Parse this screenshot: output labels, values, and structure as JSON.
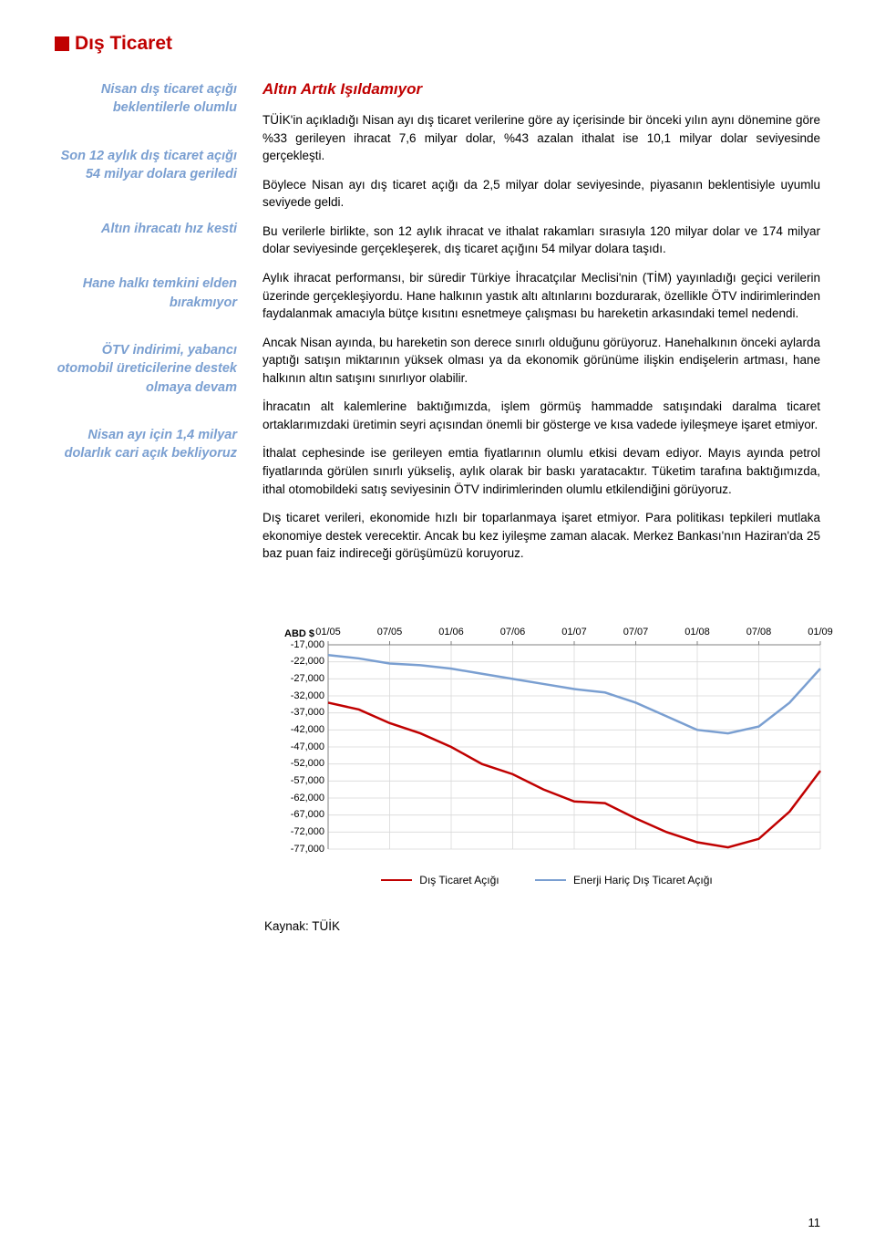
{
  "section": {
    "title": "Dış Ticaret"
  },
  "sidebar": {
    "blocks": [
      "Nisan dış ticaret açığı beklentilerle olumlu",
      "Son 12 aylık dış ticaret açığı 54 milyar dolara geriledi",
      "Altın ihracatı hız kesti",
      "Hane halkı temkini elden bırakmıyor",
      "ÖTV indirimi, yabancı otomobil üreticilerine destek olmaya devam",
      "Nisan ayı için 1,4 milyar dolarlık cari açık bekliyoruz"
    ]
  },
  "main": {
    "subtitle": "Altın Artık Işıldamıyor",
    "paragraphs": [
      "TÜİK'in açıkladığı Nisan ayı dış ticaret verilerine göre ay içerisinde bir önceki yılın aynı dönemine göre %33 gerileyen ihracat 7,6 milyar dolar, %43 azalan ithalat ise 10,1 milyar dolar seviyesinde gerçekleşti.",
      "Böylece Nisan ayı dış ticaret açığı da 2,5 milyar dolar seviyesinde, piyasanın beklentisiyle uyumlu seviyede geldi.",
      "Bu verilerle birlikte, son 12 aylık ihracat ve ithalat rakamları sırasıyla 120 milyar dolar ve 174 milyar dolar seviyesinde gerçekleşerek, dış ticaret açığını 54 milyar dolara taşıdı.",
      "Aylık ihracat performansı, bir süredir Türkiye İhracatçılar Meclisi'nin (TİM) yayınladığı geçici verilerin üzerinde gerçekleşiyordu. Hane halkının yastık altı altınlarını bozdurarak, özellikle ÖTV indirimlerinden faydalanmak amacıyla bütçe kısıtını esnetmeye çalışması bu hareketin arkasındaki temel nedendi.",
      "Ancak Nisan ayında, bu hareketin son derece sınırlı olduğunu görüyoruz. Hanehalkının önceki aylarda yaptığı satışın miktarının yüksek olması ya da ekonomik görünüme ilişkin endişelerin artması, hane halkının altın satışını sınırlıyor olabilir.",
      "İhracatın alt kalemlerine baktığımızda, işlem görmüş hammadde satışındaki daralma ticaret ortaklarımızdaki üretimin seyri açısından önemli bir gösterge ve kısa vadede iyileşmeye işaret etmiyor.",
      "İthalat cephesinde ise gerileyen emtia fiyatlarının olumlu etkisi devam ediyor. Mayıs ayında petrol fiyatlarında görülen sınırlı yükseliş, aylık olarak bir baskı yaratacaktır. Tüketim tarafına baktığımızda, ithal otomobildeki satış seviyesinin ÖTV indirimlerinden olumlu etkilendiğini görüyoruz.",
      "Dış ticaret verileri, ekonomide hızlı bir toparlanmaya işaret etmiyor. Para politikası tepkileri mutlaka ekonomiye destek verecektir. Ancak bu kez iyileşme zaman alacak. Merkez Bankası'nın Haziran'da 25 baz puan faiz indireceği görüşümüzü koruyoruz."
    ]
  },
  "chart": {
    "type": "line",
    "y_axis_title": "ABD $",
    "x_labels": [
      "01/05",
      "07/05",
      "01/06",
      "07/06",
      "01/07",
      "07/07",
      "01/08",
      "07/08",
      "01/09"
    ],
    "y_labels": [
      "-17,000",
      "-22,000",
      "-27,000",
      "-32,000",
      "-37,000",
      "-42,000",
      "-47,000",
      "-52,000",
      "-57,000",
      "-62,000",
      "-67,000",
      "-72,000",
      "-77,000"
    ],
    "ylim": [
      -77000,
      -17000
    ],
    "xlim": [
      0,
      8
    ],
    "series": [
      {
        "name": "Dış Ticaret Açığı",
        "color": "#c00000",
        "values": [
          -34000,
          -36000,
          -40000,
          -43000,
          -47000,
          -52000,
          -55000,
          -59500,
          -63000,
          -63500,
          -68000,
          -72000,
          -75000,
          -76500,
          -74000,
          -66000,
          -54000
        ]
      },
      {
        "name": "Enerji Hariç Dış Ticaret Açığı",
        "color": "#7a9fd1",
        "values": [
          -20000,
          -21000,
          -22500,
          -23000,
          -24000,
          -25500,
          -27000,
          -28500,
          -30000,
          -31000,
          -34000,
          -38000,
          -42000,
          -43000,
          -41000,
          -34000,
          -24000
        ]
      }
    ],
    "line_width": 2.5,
    "background_color": "#ffffff",
    "grid_color": "#d9d9d9",
    "axis_color": "#808080",
    "label_fontsize": 11
  },
  "source": "Kaynak: TÜİK",
  "page_number": "11",
  "colors": {
    "accent_red": "#c00000",
    "accent_blue": "#7a9fd1"
  }
}
